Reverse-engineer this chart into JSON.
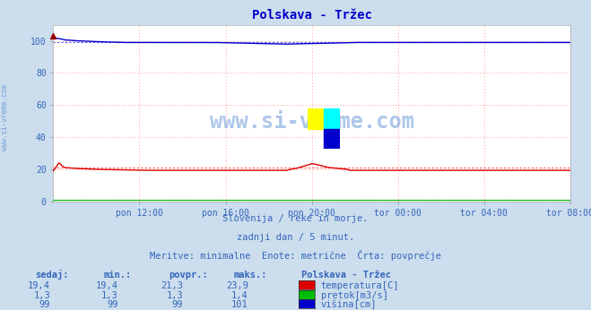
{
  "title": "Polskava - Tržec",
  "bg_color": "#ccdded",
  "plot_bg_color": "#ffffff",
  "grid_color_h": "#ff9999",
  "grid_color_v": "#ff9999",
  "xlabel_ticks": [
    "pon 12:00",
    "pon 16:00",
    "pon 20:00",
    "tor 00:00",
    "tor 04:00",
    "tor 08:00"
  ],
  "ylabel_ticks": [
    0,
    20,
    40,
    60,
    80,
    100
  ],
  "ylim": [
    0,
    110
  ],
  "xlim": [
    0,
    288
  ],
  "tick_positions": [
    48,
    96,
    144,
    192,
    240,
    288
  ],
  "n_points": 289,
  "temp_color": "#dd0000",
  "flow_color": "#00bb00",
  "height_color": "#0000cc",
  "avg_line_color": "#ff5555",
  "avg_height_color": "#5555ff",
  "avg_flow_color": "#55bb55",
  "watermark_color": "#3377cc",
  "subtitle1": "Slovenija / reke in morje.",
  "subtitle2": "zadnji dan / 5 minut.",
  "subtitle3": "Meritve: minimalne  Enote: metrične  Črta: povprečje",
  "legend_title": "Polskava - Tržec",
  "legend_items": [
    "temperatura[C]",
    "pretok[m3/s]",
    "višina[cm]"
  ],
  "legend_colors": [
    "#dd0000",
    "#00bb00",
    "#0000cc"
  ],
  "table_headers": [
    "sedaj:",
    "min.:",
    "povpr.:",
    "maks.:"
  ],
  "table_values": [
    [
      "19,4",
      "19,4",
      "21,3",
      "23,9"
    ],
    [
      "1,3",
      "1,3",
      "1,3",
      "1,4"
    ],
    [
      "99",
      "99",
      "99",
      "101"
    ]
  ],
  "text_color": "#3366bb",
  "title_color": "#0000cc",
  "watermark_text": "www.si-vreme.com",
  "side_text": "www.si-vreme.com",
  "temp_avg": 21.3,
  "flow_avg": 1.3,
  "height_avg": 99.0
}
